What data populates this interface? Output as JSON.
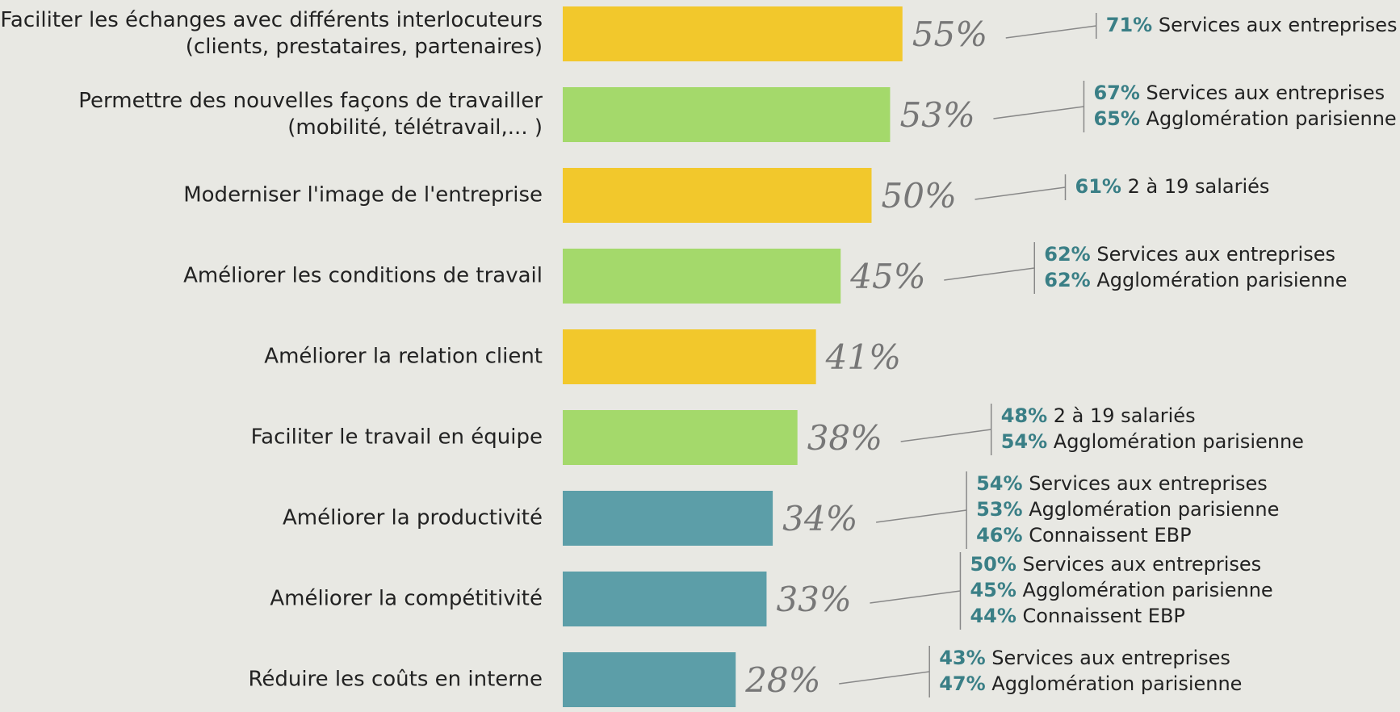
{
  "chart_data": {
    "type": "bar",
    "orientation": "horizontal",
    "categories": [
      "Faciliter les échanges avec différents interlocuteurs\n(clients, prestataires, partenaires)",
      "Permettre des nouvelles façons de travailler\n(mobilité, télétravail,... )",
      "Moderniser l'image de l'entreprise",
      "Améliorer les conditions de travail",
      "Améliorer la relation client",
      "Faciliter le travail en équipe",
      "Améliorer la productivité",
      "Améliorer la compétitivité",
      "Réduire les coûts en interne"
    ],
    "values": [
      55,
      53,
      50,
      45,
      41,
      38,
      34,
      33,
      28
    ],
    "value_labels": [
      "55%",
      "53%",
      "50%",
      "45%",
      "41%",
      "38%",
      "34%",
      "33%",
      "28%"
    ],
    "colors": [
      "#f2c82c",
      "#a4d96b",
      "#f2c82c",
      "#a4d96b",
      "#f2c82c",
      "#a4d96b",
      "#5c9ea8",
      "#5c9ea8",
      "#5c9ea8"
    ],
    "details": [
      [
        {
          "value": 71,
          "value_label": "71%",
          "segment": "Services aux entreprises"
        }
      ],
      [
        {
          "value": 67,
          "value_label": "67%",
          "segment": "Services aux entreprises"
        },
        {
          "value": 65,
          "value_label": "65%",
          "segment": "Agglomération parisienne"
        }
      ],
      [
        {
          "value": 61,
          "value_label": "61%",
          "segment": "2 à 19 salariés"
        }
      ],
      [
        {
          "value": 62,
          "value_label": "62%",
          "segment": "Services aux entreprises"
        },
        {
          "value": 62,
          "value_label": "62%",
          "segment": "Agglomération parisienne"
        }
      ],
      [],
      [
        {
          "value": 48,
          "value_label": "48%",
          "segment": "2 à 19 salariés"
        },
        {
          "value": 54,
          "value_label": "54%",
          "segment": "Agglomération parisienne"
        }
      ],
      [
        {
          "value": 54,
          "value_label": "54%",
          "segment": "Services aux entreprises"
        },
        {
          "value": 53,
          "value_label": "53%",
          "segment": "Agglomération parisienne"
        },
        {
          "value": 46,
          "value_label": "46%",
          "segment": "Connaissent EBP"
        }
      ],
      [
        {
          "value": 50,
          "value_label": "50%",
          "segment": "Services aux entreprises"
        },
        {
          "value": 45,
          "value_label": "45%",
          "segment": "Agglomération parisienne"
        },
        {
          "value": 44,
          "value_label": "44%",
          "segment": "Connaissent EBP"
        }
      ],
      [
        {
          "value": 43,
          "value_label": "43%",
          "segment": "Services aux entreprises"
        },
        {
          "value": 47,
          "value_label": "47%",
          "segment": "Agglomération parisienne"
        }
      ]
    ]
  }
}
